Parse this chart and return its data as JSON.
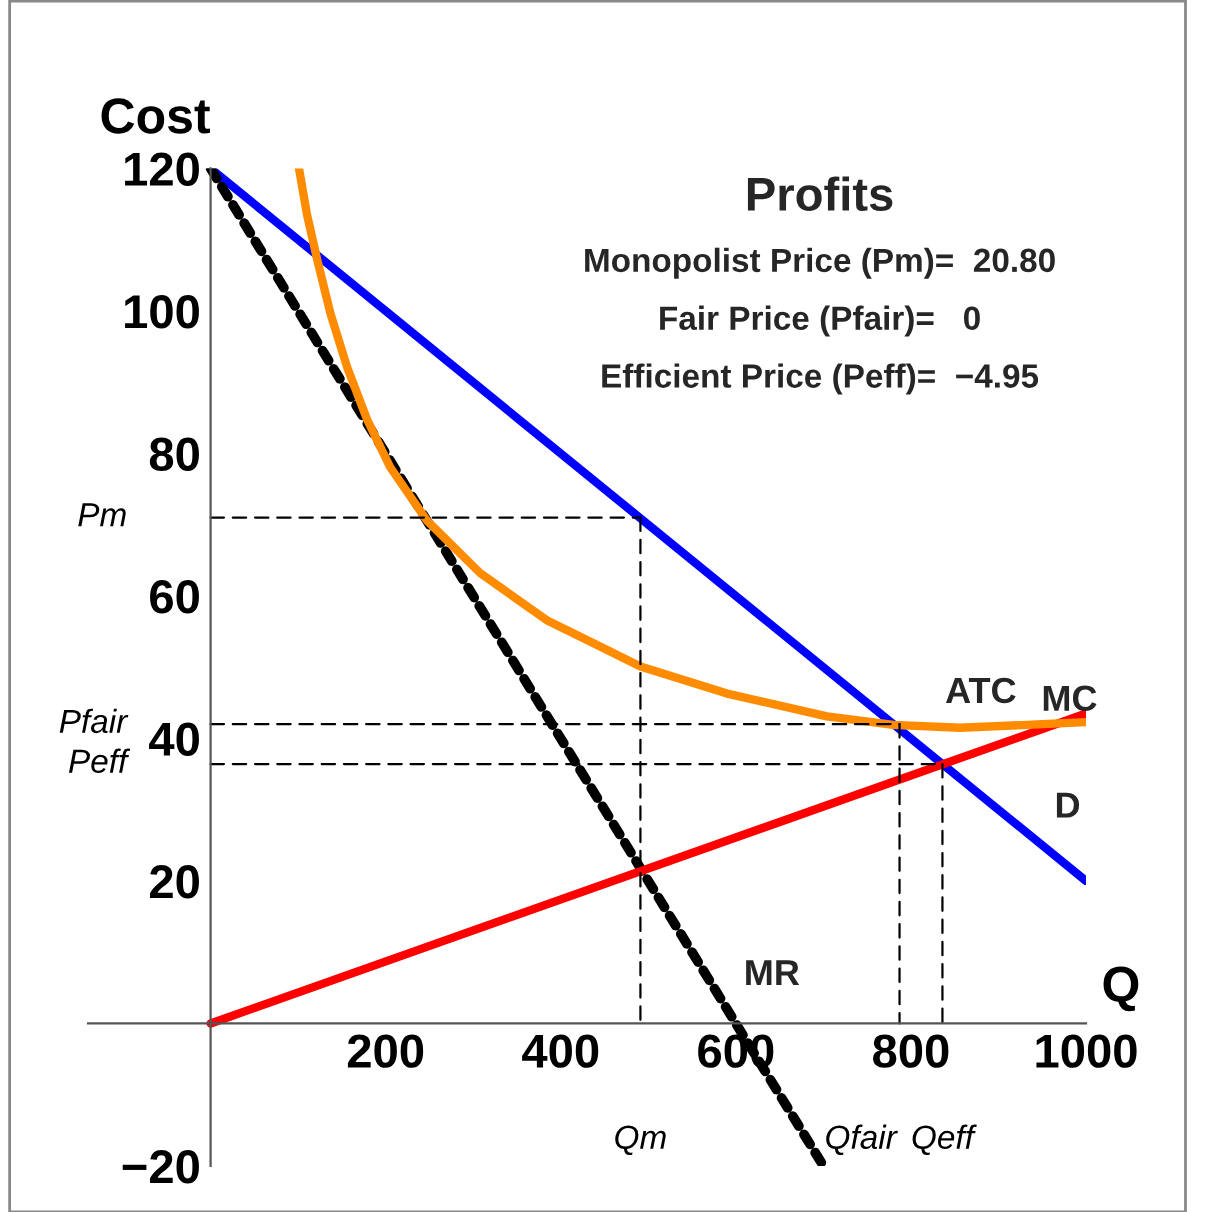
{
  "chart_data": {
    "type": "line",
    "xlabel": "Q",
    "ylabel": "Cost",
    "xlim": [
      -140,
      1000
    ],
    "ylim": [
      -20,
      120
    ],
    "xticks": [
      200,
      400,
      600,
      800,
      1000
    ],
    "yticks": [
      -20,
      20,
      40,
      60,
      80,
      100,
      120
    ],
    "grid": false,
    "legend": false,
    "series": [
      {
        "x": [
          0,
          1000
        ],
        "values": [
          120,
          20
        ],
        "color": "#0000ff",
        "line_style": "solid"
      },
      {
        "x": [
          0,
          700
        ],
        "values": [
          120,
          -20
        ],
        "color": "#000000",
        "line_style": "dotted"
      },
      {
        "x": [
          0,
          1000
        ],
        "values": [
          0,
          43.5
        ],
        "color": "#ff0000",
        "line_style": "solid"
      },
      {
        "x": [
          101,
          110,
          122,
          137,
          156,
          179,
          205,
          247,
          308,
          384,
          445,
          491,
          590,
          704,
          780,
          856,
          932,
          1000
        ],
        "values": [
          120,
          113.6,
          107.1,
          99.6,
          92.1,
          84.7,
          78.1,
          70.6,
          63.2,
          56.6,
          52.9,
          50.1,
          46.3,
          43.1,
          41.9,
          41.5,
          41.9,
          42.3
        ],
        "color": "#ff8c00",
        "line_style": "solid"
      },
      {
        "name": "Pm",
        "x": [
          0,
          491
        ],
        "values": [
          71,
          71
        ],
        "color": "#000000",
        "line_style": "dashed"
      },
      {
        "x": [
          491,
          491
        ],
        "values": [
          71,
          0
        ],
        "color": "#000000",
        "line_style": "dashed"
      },
      {
        "name": "Pfair",
        "x": [
          0,
          787
        ],
        "values": [
          42,
          42
        ],
        "color": "#000000",
        "line_style": "dashed"
      },
      {
        "x": [
          787,
          787
        ],
        "values": [
          42,
          0
        ],
        "color": "#000000",
        "line_style": "dashed"
      },
      {
        "name": "Peff",
        "x": [
          0,
          836
        ],
        "values": [
          36.4,
          36.4
        ],
        "color": "#000000",
        "line_style": "dashed"
      },
      {
        "x": [
          836,
          836
        ],
        "values": [
          36.4,
          0
        ],
        "color": "#000000",
        "line_style": "dashed"
      }
    ],
    "annotations": [
      {
        "text": "D",
        "x": 945,
        "y": 25.5
      },
      {
        "text": "MR",
        "x": 590,
        "y": 2
      },
      {
        "text": "MC",
        "x": 930,
        "y": 40.5
      },
      {
        "text": "ATC",
        "x": 820,
        "y": 41.6
      },
      "Profits",
      "Monopolist Price (Pm)=  20.80",
      "Fair Price (Pfair)=   0",
      "Efficient Price (Peff)=  −4.95",
      "Qm",
      "Qfair",
      "Qeff"
    ]
  }
}
